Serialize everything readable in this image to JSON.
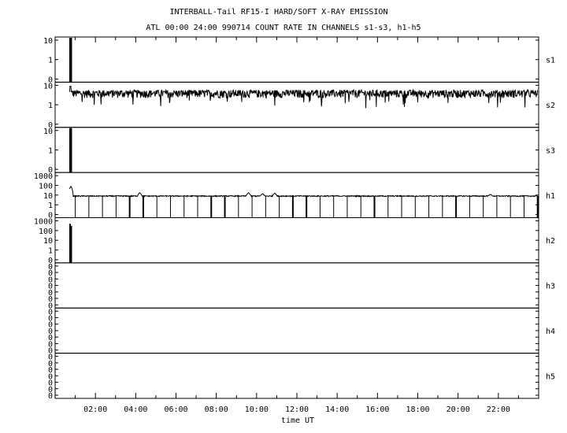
{
  "chart_data": {
    "type": "line",
    "title": "INTERBALL-Tail RF15-I HARD/SOFT X-RAY EMISSION",
    "subtitle": "ATL 00:00 24:00 990714  COUNT RATE IN CHANNELS s1-s3, h1-h5",
    "xlabel": "time UT",
    "xlim": [
      0,
      24
    ],
    "x_ticks": [
      "02:00",
      "04:00",
      "06:00",
      "08:00",
      "10:00",
      "12:00",
      "14:00",
      "16:00",
      "18:00",
      "20:00",
      "22:00"
    ],
    "yscale": "log",
    "grid": false,
    "panels": [
      {
        "name": "s1",
        "y_ticks": [
          "10",
          "1",
          "0"
        ],
        "baseline": null,
        "spikes": [
          {
            "x": 0.74,
            "peak": 22
          },
          {
            "x": 0.8,
            "peak": 18
          }
        ]
      },
      {
        "name": "s2",
        "y_ticks": [
          "10",
          "1",
          "0"
        ],
        "baseline": 4,
        "noise": "high",
        "spikes": [
          {
            "x": 0.76,
            "peak": 9
          }
        ]
      },
      {
        "name": "s3",
        "y_ticks": [
          "10",
          "1",
          "0"
        ],
        "baseline": null,
        "spikes": [
          {
            "x": 0.74,
            "peak": 22
          },
          {
            "x": 0.8,
            "peak": 18
          }
        ]
      },
      {
        "name": "h1",
        "y_ticks": [
          "1000",
          "100",
          "10",
          "1",
          "0"
        ],
        "baseline": 8,
        "noise": "low",
        "bumps": [
          {
            "x": 0.78,
            "peak": 80
          },
          {
            "x": 4.2,
            "peak": 18
          },
          {
            "x": 9.6,
            "peak": 18
          },
          {
            "x": 10.3,
            "peak": 14
          },
          {
            "x": 10.9,
            "peak": 16
          },
          {
            "x": 21.6,
            "peak": 12
          }
        ],
        "dropouts_every_h": 0.5,
        "dropout_start_h": 1.0
      },
      {
        "name": "h2",
        "y_ticks": [
          "1000",
          "100",
          "10",
          "1",
          "0"
        ],
        "baseline": null,
        "spikes": [
          {
            "x": 0.74,
            "peak": 500
          },
          {
            "x": 0.8,
            "peak": 300
          }
        ]
      },
      {
        "name": "h3",
        "y_ticks": [
          "0",
          "0",
          "0",
          "0",
          "0",
          "0",
          "0"
        ],
        "baseline": null
      },
      {
        "name": "h4",
        "y_ticks": [
          "0",
          "0",
          "0",
          "0",
          "0",
          "0",
          "0"
        ],
        "baseline": null
      },
      {
        "name": "h5",
        "y_ticks": [
          "0",
          "0",
          "0",
          "0",
          "0",
          "0",
          "0"
        ],
        "baseline": null
      }
    ]
  }
}
